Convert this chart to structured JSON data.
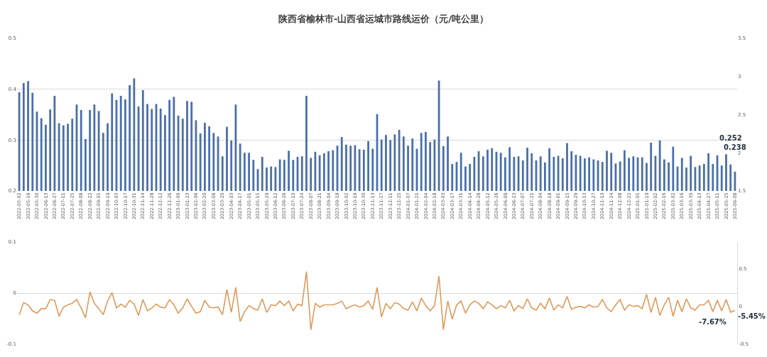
{
  "chart_data": [
    {
      "type": "bar",
      "title": "陕西省榆林市-山西省运城市路线运价（元/吨公里）",
      "categories": [
        "2022-05-02",
        null,
        "2022-05-16",
        null,
        "2022-05-30",
        null,
        "2022-06-13",
        null,
        "2022-06-27",
        null,
        "2022-07-11",
        null,
        "2022-07-25",
        null,
        "2022-08-08",
        null,
        "2022-08-22",
        null,
        "2022-09-05",
        null,
        "2022-09-19",
        null,
        "2022-10-03",
        null,
        "2022-10-17",
        null,
        "2022-10-31",
        null,
        "2022-11-14",
        null,
        "2022-11-28",
        null,
        "2022-12-12",
        null,
        "2022-12-26",
        null,
        "2023-01-09",
        null,
        "2023-01-23",
        null,
        "2023-02-06",
        null,
        "2023-02-20",
        null,
        "2023-03-06",
        null,
        "2023-03-20",
        null,
        "2023-04-03",
        null,
        "2023-04-17",
        null,
        "2023-05-01",
        null,
        "2023-05-15",
        null,
        "2023-05-29",
        null,
        "2023-06-12",
        null,
        "2023-06-26",
        null,
        "2023-07-10",
        null,
        "2023-07-24",
        null,
        "2023-08-07",
        null,
        "2023-08-21",
        null,
        "2023-09-04",
        null,
        "2023-09-18",
        null,
        "2023-10-02",
        null,
        "2023-10-16",
        null,
        "2023-10-30",
        null,
        "2023-11-13",
        null,
        "2023-11-27",
        null,
        "2023-12-11",
        null,
        "2023-12-25",
        null,
        "2024-01-07",
        null,
        "2024-01-21",
        null,
        "2024-02-04",
        null,
        "2024-02-18",
        null,
        "2024-03-03",
        null,
        "2024-03-17",
        null,
        "2024-03-31",
        null,
        "2024-04-14",
        null,
        "2024-04-28",
        null,
        "2024-05-12",
        null,
        "2024-05-26",
        null,
        "2024-06-09",
        null,
        "2024-06-23",
        null,
        "2024-07-07",
        null,
        "2024-07-21",
        null,
        "2024-08-04",
        null,
        "2024-08-18",
        null,
        "2024-09-01",
        null,
        "2024-09-15",
        null,
        "2024-09-29",
        null,
        "2024-10-13",
        null,
        "2024-10-27",
        null,
        "2024-11-10",
        null,
        "2024-11-24",
        null,
        "2024-12-08",
        null,
        "2024-12-22",
        null,
        "2025-01-05",
        null,
        "2025-01-19",
        null,
        "2025-02-02",
        null,
        "2025-02-16",
        null,
        "2025-03-02",
        null,
        "2025-03-16",
        null,
        "2025-03-30",
        null,
        "2025-04-13",
        null,
        "2025-04-27",
        null,
        "2025-05-11",
        null,
        "2025-05-25",
        null,
        "2025-06-08"
      ],
      "values": [
        0.394,
        0.412,
        0.416,
        0.393,
        0.356,
        0.343,
        0.33,
        0.36,
        0.387,
        0.333,
        0.329,
        0.332,
        0.342,
        0.37,
        0.359,
        0.302,
        0.359,
        0.37,
        0.357,
        0.314,
        0.333,
        0.392,
        0.379,
        0.387,
        0.38,
        0.408,
        0.421,
        0.366,
        0.398,
        0.371,
        0.361,
        0.371,
        0.362,
        0.349,
        0.379,
        0.385,
        0.348,
        0.342,
        0.377,
        0.375,
        0.339,
        0.313,
        0.334,
        0.327,
        0.314,
        0.307,
        0.268,
        0.326,
        0.299,
        0.37,
        0.293,
        0.275,
        0.275,
        0.261,
        0.243,
        0.267,
        0.246,
        0.248,
        0.247,
        0.262,
        0.261,
        0.279,
        0.261,
        0.267,
        0.268,
        0.387,
        0.265,
        0.277,
        0.27,
        0.274,
        0.278,
        0.28,
        0.289,
        0.306,
        0.291,
        0.289,
        0.29,
        0.282,
        0.281,
        0.298,
        0.283,
        0.351,
        0.301,
        0.31,
        0.3,
        0.311,
        0.32,
        0.307,
        0.289,
        0.303,
        0.283,
        0.314,
        0.316,
        0.296,
        0.301,
        0.417,
        0.288,
        0.307,
        0.253,
        0.257,
        0.275,
        0.248,
        0.253,
        0.267,
        0.278,
        0.268,
        0.281,
        0.284,
        0.277,
        0.275,
        0.266,
        0.286,
        0.267,
        0.268,
        0.26,
        0.285,
        0.274,
        0.26,
        0.268,
        0.256,
        0.284,
        0.267,
        0.269,
        0.264,
        0.294,
        0.278,
        0.271,
        0.269,
        0.264,
        0.266,
        0.262,
        0.26,
        0.257,
        0.279,
        0.275,
        0.254,
        0.258,
        0.28,
        0.265,
        0.268,
        0.266,
        0.266,
        0.255,
        0.295,
        0.269,
        0.299,
        0.262,
        0.256,
        0.287,
        0.248,
        0.265,
        0.246,
        0.269,
        0.247,
        0.25,
        0.253,
        0.274,
        0.253,
        0.27,
        0.25,
        0.272,
        0.252,
        0.238
      ],
      "value_labels": [
        null,
        null,
        null,
        null,
        null,
        null,
        null,
        null,
        null,
        null,
        null,
        null,
        null,
        null,
        null,
        null,
        null,
        null,
        null,
        null,
        null,
        null,
        null,
        null,
        null,
        null,
        null,
        null,
        null,
        null,
        null,
        null,
        null,
        null,
        null,
        null,
        null,
        null,
        null,
        null,
        null,
        null,
        null,
        null,
        null,
        null,
        null,
        null,
        null,
        null,
        null,
        null,
        null,
        null,
        null,
        null,
        null,
        null,
        null,
        null,
        null,
        null,
        null,
        null,
        null,
        null,
        null,
        null,
        null,
        null,
        null,
        null,
        null,
        null,
        null,
        null,
        null,
        null,
        null,
        null,
        null,
        null,
        null,
        null,
        null,
        null,
        null,
        null,
        null,
        null,
        null,
        null,
        null,
        null,
        null,
        null,
        null,
        null,
        null,
        null,
        null,
        null,
        null,
        null,
        null,
        null,
        null,
        null,
        null,
        null,
        null,
        null,
        null,
        null,
        null,
        null,
        null,
        null,
        null,
        null,
        null,
        null,
        null,
        null,
        null,
        null,
        null,
        null,
        null,
        null,
        null,
        null,
        null,
        null,
        null,
        null,
        null,
        null,
        null,
        null,
        null,
        null,
        null,
        null,
        null,
        null,
        null,
        null,
        null,
        null,
        null,
        null,
        null,
        null,
        null,
        null,
        null,
        null,
        null,
        null,
        null,
        "0.252",
        "0.238"
      ],
      "color": "#4a6fa8",
      "ylim": [
        0.2,
        0.5
      ],
      "yticks": [
        0.2,
        0.3,
        0.4,
        0.5
      ],
      "y2lim": [
        1.5,
        3.5
      ],
      "y2ticks": [
        1.5,
        2,
        2.5,
        3,
        3.5
      ],
      "grid": "y"
    },
    {
      "type": "line",
      "categories": [
        null,
        null,
        null,
        null,
        null,
        null,
        null,
        null,
        null,
        null,
        null,
        null,
        null,
        null,
        null,
        null,
        null,
        null,
        null,
        null,
        null,
        null,
        null,
        null,
        null,
        null,
        null,
        null,
        null,
        null,
        null,
        null,
        null,
        null,
        null,
        null,
        null,
        null,
        null,
        null,
        null,
        null,
        null,
        null,
        null,
        null,
        null,
        null,
        null,
        null,
        null,
        null,
        null,
        null,
        null,
        null,
        null,
        null,
        null,
        null,
        null,
        null,
        null,
        null,
        null,
        null,
        null,
        null,
        null,
        null,
        null,
        null,
        null,
        null,
        null,
        null,
        null,
        null,
        null,
        null,
        null,
        null,
        null,
        null,
        null,
        null,
        null,
        null,
        null,
        null,
        null,
        null,
        null,
        null,
        null,
        null,
        null,
        null,
        null,
        null,
        null,
        null,
        null,
        null,
        null,
        null,
        null,
        null,
        null,
        null,
        null,
        null,
        null,
        null,
        null,
        null,
        null,
        null,
        null,
        null,
        null,
        null,
        null,
        null,
        null,
        null,
        null,
        null,
        null,
        null,
        null,
        null,
        null,
        null,
        null,
        null,
        null,
        null,
        null,
        null,
        null,
        null,
        null,
        null,
        null,
        null,
        null,
        null,
        null,
        null,
        null,
        null,
        null,
        null,
        null,
        null,
        null,
        null,
        null,
        null,
        null,
        null,
        null
      ],
      "series": [
        {
          "axis": "y2",
          "color": "#dd9a5b",
          "values": [
            -0.11,
            0.05,
            0.02,
            -0.06,
            -0.09,
            -0.03,
            -0.03,
            0.09,
            0.08,
            -0.13,
            -0.01,
            0.02,
            0.04,
            0.09,
            -0.02,
            -0.15,
            0.19,
            0.04,
            -0.03,
            -0.11,
            0.07,
            0.18,
            -0.02,
            0.03,
            -0.01,
            0.08,
            0.03,
            -0.12,
            0.09,
            -0.06,
            -0.02,
            0.03,
            -0.01,
            -0.02,
            0.09,
            0.02,
            -0.09,
            -0.02,
            0.1,
            0,
            -0.09,
            -0.07,
            0.08,
            -0.01,
            -0.02,
            -0.01,
            -0.11,
            0.22,
            -0.08,
            0.25,
            -0.2,
            -0.07,
            0.01,
            -0.03,
            -0.05,
            0.1,
            -0.08,
            0.02,
            0.01,
            0.07,
            0.01,
            0.07,
            -0.06,
            0.03,
            0.01,
            0.46,
            -0.31,
            0.04,
            -0.01,
            0.02,
            0.02,
            0.02,
            0.04,
            0.07,
            -0.03,
            0,
            0.02,
            -0.01,
            0.01,
            0.07,
            -0.04,
            0.25,
            -0.14,
            0.04,
            -0.03,
            0.05,
            0.03,
            -0.03,
            -0.05,
            0.06,
            -0.06,
            0.11,
            0.01,
            -0.06,
            0.01,
            0.4,
            -0.31,
            0.07,
            -0.17,
            0.02,
            0.07,
            -0.09,
            0.02,
            0.07,
            0.04,
            -0.03,
            0.06,
            0.02,
            -0.03,
            0.01,
            -0.02,
            0.08,
            -0.06,
            0.01,
            -0.03,
            0.1,
            -0.02,
            -0.05,
            0.04,
            -0.03,
            0.11,
            -0.05,
            0.02,
            -0.02,
            0.13,
            -0.04,
            -0.01,
            0,
            -0.02,
            0.02,
            -0.01,
            0,
            0.09,
            -0.02,
            -0.07,
            0.02,
            0.09,
            -0.05,
            0.02,
            0,
            0.01,
            -0.03,
            0.16,
            -0.08,
            0.12,
            -0.12,
            0.02,
            0.12,
            -0.13,
            0.08,
            -0.07,
            0.1,
            -0.02,
            -0.05,
            0.02,
            0.02,
            0.08,
            -0.07,
            0.08,
            -0.06,
            0.09,
            -0.0767,
            -0.0545
          ],
          "value_labels": [
            null,
            null,
            null,
            null,
            null,
            null,
            null,
            null,
            null,
            null,
            null,
            null,
            null,
            null,
            null,
            null,
            null,
            null,
            null,
            null,
            null,
            null,
            null,
            null,
            null,
            null,
            null,
            null,
            null,
            null,
            null,
            null,
            null,
            null,
            null,
            null,
            null,
            null,
            null,
            null,
            null,
            null,
            null,
            null,
            null,
            null,
            null,
            null,
            null,
            null,
            null,
            null,
            null,
            null,
            null,
            null,
            null,
            null,
            null,
            null,
            null,
            null,
            null,
            null,
            null,
            null,
            null,
            null,
            null,
            null,
            null,
            null,
            null,
            null,
            null,
            null,
            null,
            null,
            null,
            null,
            null,
            null,
            null,
            null,
            null,
            null,
            null,
            null,
            null,
            null,
            null,
            null,
            null,
            null,
            null,
            null,
            null,
            null,
            null,
            null,
            null,
            null,
            null,
            null,
            null,
            null,
            null,
            null,
            null,
            null,
            null,
            null,
            null,
            null,
            null,
            null,
            null,
            null,
            null,
            null,
            null,
            null,
            null,
            null,
            null,
            null,
            null,
            null,
            null,
            null,
            null,
            null,
            null,
            null,
            null,
            null,
            null,
            null,
            null,
            null,
            null,
            null,
            null,
            null,
            null,
            null,
            null,
            null,
            null,
            null,
            null,
            null,
            null,
            null,
            null,
            null,
            null,
            null,
            null,
            null,
            null,
            "-7.67%",
            "-5.45%"
          ]
        }
      ],
      "ylim": [
        -0.1,
        0.1
      ],
      "yticks": [
        -0.1,
        0,
        0.1
      ],
      "y2lim": [
        -0.5,
        0.85
      ],
      "y2ticks": [
        -0.5,
        0,
        0.5
      ],
      "grid": "y",
      "marker": "none",
      "line_style": "solid"
    }
  ]
}
